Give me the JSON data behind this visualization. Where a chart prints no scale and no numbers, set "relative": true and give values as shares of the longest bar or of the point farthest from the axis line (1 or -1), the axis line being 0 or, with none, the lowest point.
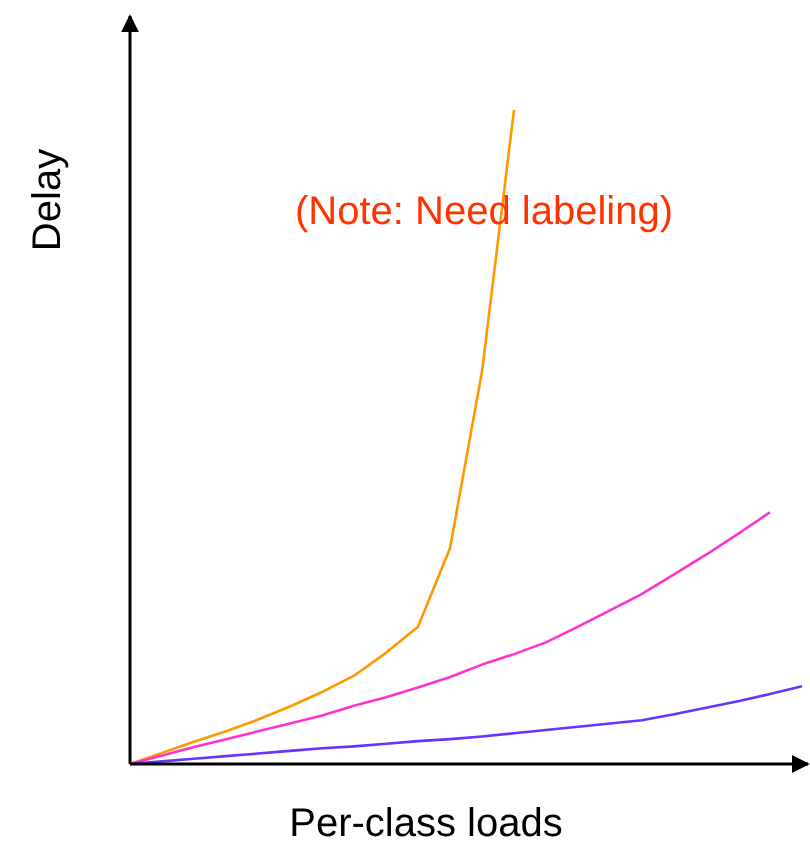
{
  "chart_data": {
    "type": "line",
    "relative": true,
    "xlabel": "Per-class loads",
    "ylabel": "Delay",
    "annotations": [
      "(Note: Need labeling)"
    ],
    "line_style": "solid",
    "categories": [
      null,
      null,
      null,
      null,
      null,
      null,
      null,
      null,
      null,
      null,
      null,
      null,
      null,
      null,
      null,
      null,
      null,
      null,
      null,
      null,
      null,
      null
    ],
    "series": [
      {
        "color": "#ff9900",
        "values": [
          0,
          0.017,
          0.034,
          0.05,
          0.068,
          0.088,
          0.11,
          0.135,
          0.17,
          0.21,
          0.33,
          0.6,
          1,
          null,
          null,
          null,
          null,
          null,
          null,
          null,
          null,
          null
        ]
      },
      {
        "color": "#ff33cc",
        "values": [
          0,
          0.013,
          0.026,
          0.038,
          0.05,
          0.062,
          0.074,
          0.089,
          0.102,
          0.117,
          0.133,
          0.152,
          0.168,
          0.186,
          0.21,
          0.235,
          0.26,
          0.29,
          0.32,
          0.352,
          0.385,
          null
        ]
      },
      {
        "color": "#6633ff",
        "values": [
          0,
          0.004,
          0.008,
          0.012,
          0.016,
          0.02,
          0.024,
          0.027,
          0.031,
          0.035,
          0.038,
          0.042,
          0.047,
          0.052,
          0.057,
          0.062,
          0.067,
          0.076,
          0.086,
          0.096,
          0.107,
          0.119
        ]
      }
    ]
  }
}
